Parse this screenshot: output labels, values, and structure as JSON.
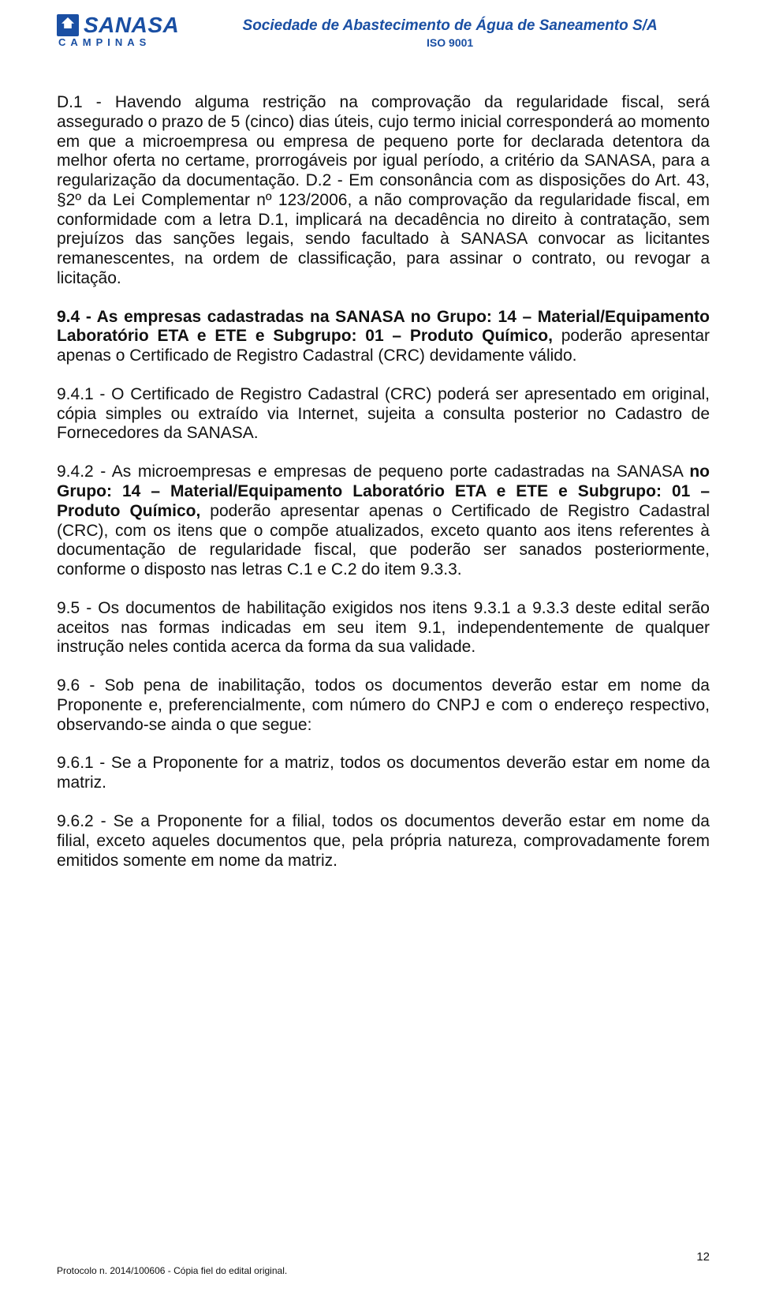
{
  "colors": {
    "brand": "#1a4fa3",
    "text": "#111111",
    "background": "#ffffff"
  },
  "typography": {
    "body_family": "Arial",
    "body_size_pt": 16,
    "title_size_pt": 14
  },
  "header": {
    "logo_name": "SANASA",
    "logo_subtitle": "CAMPINAS",
    "org_title": "Sociedade de Abastecimento de Água de Saneamento S/A",
    "iso": "ISO 9001"
  },
  "paragraphs": {
    "d1": "D.1 - Havendo alguma restrição na comprovação da regularidade fiscal, será assegurado o prazo de 5 (cinco) dias úteis, cujo termo inicial corresponderá ao momento em que a microempresa ou empresa de pequeno porte for declarada detentora da melhor oferta no certame, prorrogáveis por igual período, a critério da SANASA, para a regularização da documentação. ",
    "d2": "D.2 - Em consonância com as disposições do Art. 43, §2º da Lei Complementar nº 123/2006, a não comprovação da regularidade fiscal, em conformidade com a letra D.1, implicará na decadência no direito à contratação, sem prejuízos das sanções legais, sendo facultado à SANASA convocar as licitantes remanescentes, na ordem de classificação, para assinar o contrato, ou revogar a licitação.",
    "p94_bold": "9.4 - As empresas cadastradas na SANASA no Grupo: 14 – Material/Equipamento Laboratório ETA e ETE e Subgrupo: 01 – Produto Químico, ",
    "p94_rest": "poderão apresentar apenas o Certificado de Registro Cadastral (CRC) devidamente válido.",
    "p941": "9.4.1 - O Certificado de Registro Cadastral (CRC) poderá ser apresentado em original, cópia simples ou extraído via Internet, sujeita a consulta posterior no Cadastro de Fornecedores da SANASA.",
    "p942_a": "9.4.2 - As microempresas e empresas de pequeno porte cadastradas na SANASA ",
    "p942_b_bold": "no Grupo: 14 – Material/Equipamento Laboratório ETA e ETE e Subgrupo: 01 – Produto Químico, ",
    "p942_c": "poderão apresentar apenas o Certificado de Registro Cadastral (CRC), com os itens que o compõe atualizados, exceto quanto aos itens referentes à documentação de regularidade fiscal, que poderão ser sanados posteriormente, conforme o disposto nas letras C.1 e C.2 do item 9.3.3.",
    "p95": "9.5 - Os documentos de habilitação exigidos nos itens 9.3.1 a 9.3.3 deste edital serão aceitos nas formas indicadas em seu item 9.1, independentemente de qualquer instrução neles contida acerca da forma da sua validade.",
    "p96": "9.6 - Sob pena de inabilitação, todos os documentos deverão estar em nome da Proponente e, preferencialmente, com número do CNPJ e com o endereço respectivo, observando-se ainda o que segue:",
    "p961": "9.6.1 - Se a Proponente for a matriz, todos os documentos deverão estar em nome da matriz.",
    "p962": "9.6.2 - Se a Proponente for a filial, todos os documentos deverão estar em nome da filial, exceto aqueles documentos que, pela própria natureza, comprovadamente forem emitidos somente em nome da matriz."
  },
  "footer": {
    "page_number": "12",
    "protocol": "Protocolo n. 2014/100606 - Cópia fiel do edital original."
  }
}
